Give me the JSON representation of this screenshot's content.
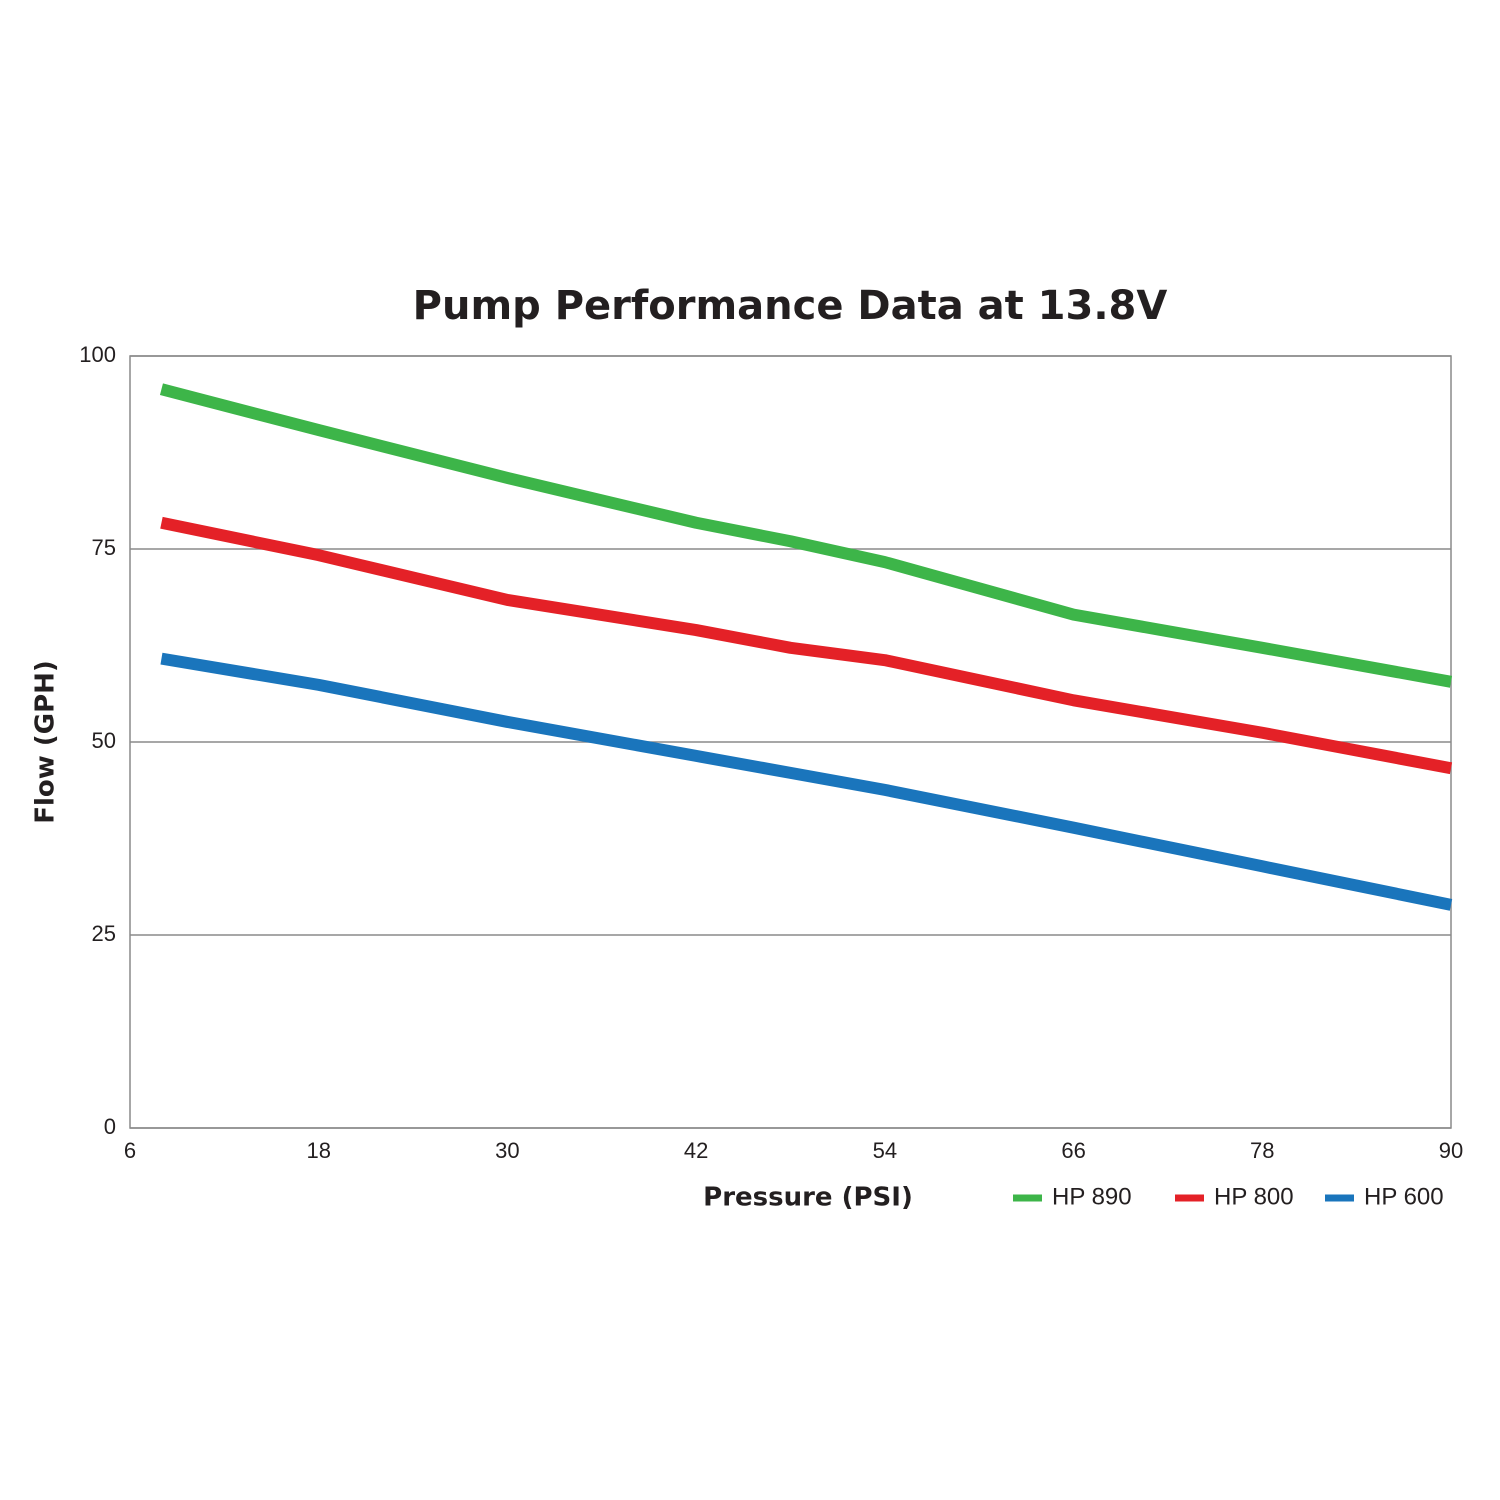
{
  "chart_data": {
    "type": "line",
    "title": "Pump Performance Data at 13.8V",
    "x_label": "Pressure (PSI)",
    "y_label": "Flow (GPH)",
    "x": [
      8,
      18,
      30,
      42,
      48,
      54,
      66,
      78,
      90
    ],
    "series": [
      {
        "name": "HP 890",
        "color": "#3db549",
        "values": [
          95.7,
          90.4,
          84.2,
          78.4,
          76,
          73.3,
          66.5,
          62.2,
          57.8
        ]
      },
      {
        "name": "HP 800",
        "color": "#e42127",
        "values": [
          78.4,
          74.2,
          68.4,
          64.5,
          62.2,
          60.6,
          55.4,
          51.2,
          46.6
        ]
      },
      {
        "name": "HP 600",
        "color": "#1a75bc",
        "values": [
          60.8,
          57.4,
          52.6,
          48.2,
          46,
          43.8,
          38.9,
          33.9,
          28.9
        ]
      }
    ],
    "xlim": [
      6,
      90
    ],
    "xticks": [
      6,
      18,
      30,
      42,
      54,
      66,
      78,
      90
    ],
    "ylim": [
      0,
      100
    ],
    "yticks": [
      0,
      25,
      50,
      75,
      100
    ],
    "grid": true,
    "legend": "bottom-right"
  }
}
